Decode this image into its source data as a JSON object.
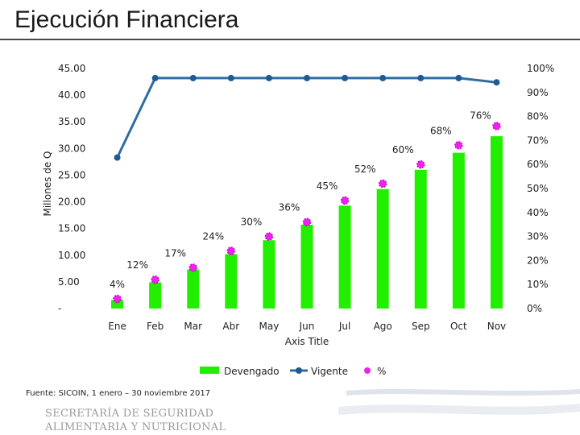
{
  "header": {
    "title": "Ejecución Financiera"
  },
  "footer": {
    "source": "Fuente: SICOIN, 1 enero – 30 noviembre 2017",
    "logo_line1": "SECRETARÍA DE SEGURIDAD",
    "logo_line2": "ALIMENTARIA Y NUTRICIONAL"
  },
  "chart_data": {
    "type": "bar",
    "title": "",
    "xlabel": "Axis Title",
    "ylabel": "Millones de Q",
    "categories": [
      "Ene",
      "Feb",
      "Mar",
      "Abr",
      "May",
      "Jun",
      "Jul",
      "Ago",
      "Sep",
      "Oct",
      "Nov"
    ],
    "ylim": [
      0,
      45
    ],
    "y_ticks": [
      "-",
      "5.00",
      "10.00",
      "15.00",
      "20.00",
      "25.00",
      "30.00",
      "35.00",
      "40.00",
      "45.00"
    ],
    "y2lim": [
      0,
      100
    ],
    "y2_ticks": [
      "0%",
      "10%",
      "20%",
      "30%",
      "40%",
      "50%",
      "60%",
      "70%",
      "80%",
      "90%",
      "100%"
    ],
    "series": [
      {
        "name": "Devengado",
        "kind": "bar",
        "color": "#22ee00",
        "values": [
          1.6,
          4.9,
          7.3,
          10.2,
          12.8,
          15.7,
          19.3,
          22.4,
          26.0,
          29.2,
          32.3
        ]
      },
      {
        "name": "Vigente",
        "kind": "line",
        "color": "#2e6da4",
        "values": [
          28.3,
          43.2,
          43.2,
          43.2,
          43.2,
          43.2,
          43.2,
          43.2,
          43.2,
          43.2,
          42.4
        ]
      },
      {
        "name": "%",
        "kind": "marker",
        "axis": "y2",
        "color": "#ee22ee",
        "values": [
          4,
          12,
          17,
          24,
          30,
          36,
          45,
          52,
          60,
          68,
          76
        ],
        "labels": [
          "4%",
          "12%",
          "17%",
          "24%",
          "30%",
          "36%",
          "45%",
          "52%",
          "60%",
          "68%",
          "76%"
        ]
      }
    ],
    "legend": "bottom"
  }
}
